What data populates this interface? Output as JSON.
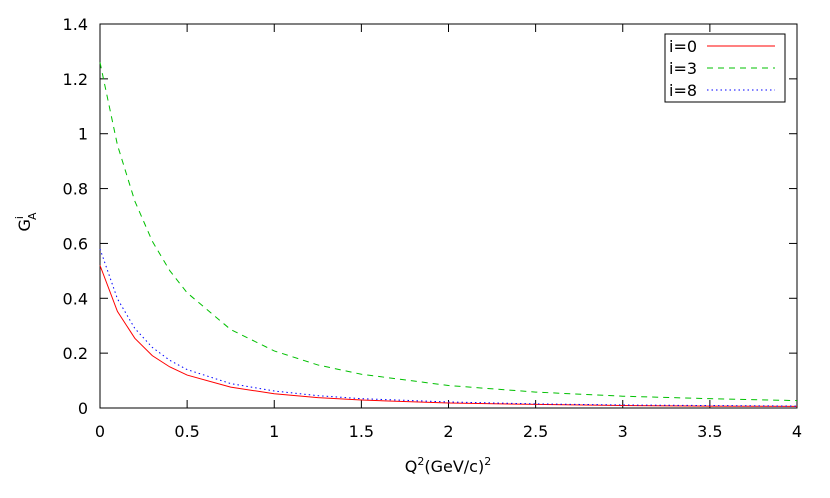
{
  "chart_data": {
    "type": "line",
    "x_label": {
      "base": "Q",
      "sup": "2",
      "rest": "(GeV/c)",
      "sup2": "2"
    },
    "y_label": {
      "base": "G",
      "sup": "i",
      "sub": "A"
    },
    "x": [
      0,
      0.1,
      0.2,
      0.3,
      0.4,
      0.5,
      0.75,
      1,
      1.25,
      1.5,
      2,
      2.5,
      3,
      3.5,
      4
    ],
    "series": [
      {
        "name": "i=0",
        "color": "#ff0000",
        "dash": "none",
        "values": [
          0.52,
          0.352,
          0.254,
          0.191,
          0.15,
          0.12,
          0.076,
          0.052,
          0.038,
          0.029,
          0.018,
          0.013,
          0.009,
          0.007,
          0.006
        ]
      },
      {
        "name": "i=3",
        "color": "#00c000",
        "dash": "6,5",
        "values": [
          1.26,
          0.959,
          0.754,
          0.608,
          0.501,
          0.42,
          0.286,
          0.208,
          0.157,
          0.123,
          0.082,
          0.058,
          0.043,
          0.034,
          0.027
        ]
      },
      {
        "name": "i=8",
        "color": "#0000ff",
        "dash": "1.5,3",
        "values": [
          0.58,
          0.398,
          0.29,
          0.221,
          0.174,
          0.14,
          0.089,
          0.062,
          0.045,
          0.034,
          0.022,
          0.015,
          0.011,
          0.009,
          0.007
        ]
      }
    ],
    "xlim": [
      0,
      4
    ],
    "xticks": [
      0,
      0.5,
      1,
      1.5,
      2,
      2.5,
      3,
      3.5,
      4
    ],
    "ylim": [
      0,
      1.4
    ],
    "yticks": [
      0,
      0.2,
      0.4,
      0.6,
      0.8,
      1,
      1.2,
      1.4
    ],
    "legend": "top-right",
    "grid": false
  }
}
